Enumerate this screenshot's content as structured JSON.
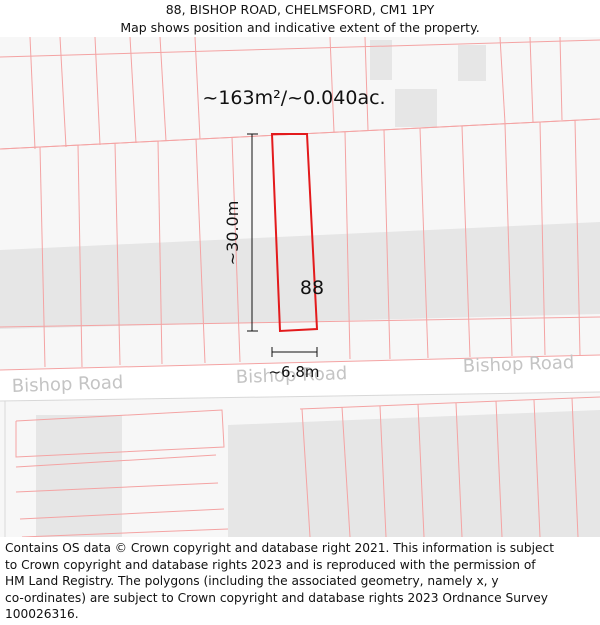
{
  "header": {
    "title": "88, BISHOP ROAD, CHELMSFORD, CM1 1PY",
    "subtitle": "Map shows position and indicative extent of the property."
  },
  "map": {
    "area_label": "~163m²/~0.040ac.",
    "house_number": "88",
    "depth_label": "~30.0m",
    "width_label": "~6.8m",
    "road_labels": [
      "Bishop Road",
      "Bishop Road",
      "Bishop Road"
    ],
    "colors": {
      "parcel_outline": "#e31a1c",
      "plot_lines": "#f4a3a3",
      "building": "#e6e6e6",
      "road": "#ffffff",
      "road_label": "#c4c4c4"
    }
  },
  "footer": {
    "lines": [
      "Contains OS data © Crown copyright and database right 2021. This information is subject",
      "to Crown copyright and database rights 2023 and is reproduced with the permission of",
      "HM Land Registry. The polygons (including the associated geometry, namely x, y",
      "co-ordinates) are subject to Crown copyright and database rights 2023 Ordnance Survey",
      "100026316."
    ]
  }
}
